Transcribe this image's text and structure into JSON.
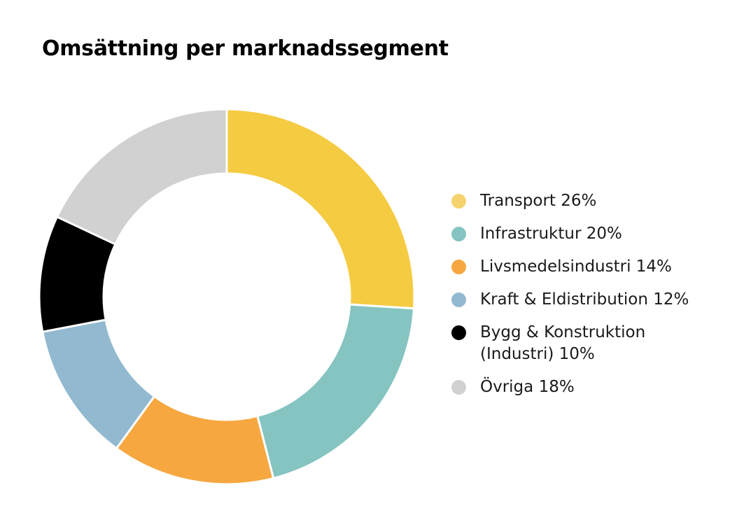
{
  "chart_data": {
    "type": "pie",
    "title": "Omsättning per marknadssegment",
    "categories": [
      "Transport",
      "Infrastruktur",
      "Livsmedelsindustri",
      "Kraft & Eldistribution",
      "Bygg & Konstruktion (Industri)",
      "Övriga"
    ],
    "values": [
      26,
      20,
      14,
      12,
      10,
      18
    ],
    "unit": "%",
    "colors": [
      "#F5CB42",
      "#85C4C1",
      "#F6A73F",
      "#92B9CF",
      "#000000",
      "#D1D1D1"
    ],
    "legend": [
      "Transport 26%",
      "Infrastruktur 20%",
      "Livsmedelsindustri 14%",
      "Kraft & Eldistribution 12%",
      "Bygg & Konstruktion\n(Industri) 10%",
      "Övriga 18%"
    ],
    "legend_dot_colors": [
      "#F5D36E",
      "#85C4C1",
      "#F6A73F",
      "#92B9CF",
      "#000000",
      "#D1D1D1"
    ],
    "legend_position": "right",
    "donut": true
  }
}
